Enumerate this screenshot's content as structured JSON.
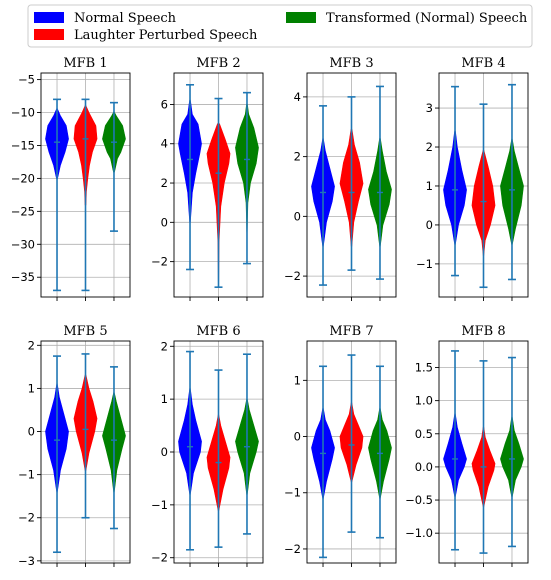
{
  "chart_data": {
    "type": "violin",
    "legend": {
      "placement": "top",
      "entries": [
        {
          "label": "Normal Speech",
          "color": "#0000ff"
        },
        {
          "label": "Laughter Perturbed Speech",
          "color": "#ff0000"
        },
        {
          "label": "Transformed (Normal) Speech",
          "color": "#008000"
        }
      ]
    },
    "grid": true,
    "colors": {
      "whisker": "#1f77b4",
      "grid": "#b0b0b0"
    },
    "panels": [
      {
        "title": "MFB 1",
        "ylim": [
          -38,
          -4
        ],
        "yticks": [
          -35,
          -30,
          -25,
          -20,
          -15,
          -10,
          -5
        ],
        "ytick_labels": [
          "−35",
          "−30",
          "−25",
          "−20",
          "−15",
          "−10",
          "−5"
        ],
        "series": [
          {
            "min": -37,
            "max": -8,
            "median": -14.5,
            "profile": [
              [
                -20,
                0.05
              ],
              [
                -18,
                0.3
              ],
              [
                -16,
                0.7
              ],
              [
                -14,
                1
              ],
              [
                -12,
                0.8
              ],
              [
                -10.5,
                0.3
              ],
              [
                -9.5,
                0.05
              ]
            ]
          },
          {
            "min": -37,
            "max": -8,
            "median": -14,
            "profile": [
              [
                -24,
                0.04
              ],
              [
                -22,
                0.08
              ],
              [
                -20,
                0.2
              ],
              [
                -18,
                0.35
              ],
              [
                -16,
                0.6
              ],
              [
                -14,
                1
              ],
              [
                -12,
                0.9
              ],
              [
                -10,
                0.3
              ],
              [
                -9,
                0.05
              ]
            ]
          },
          {
            "min": -28,
            "max": -8.5,
            "median": -14.5,
            "profile": [
              [
                -19,
                0.05
              ],
              [
                -17,
                0.3
              ],
              [
                -16,
                0.6
              ],
              [
                -14,
                1
              ],
              [
                -12,
                0.75
              ],
              [
                -10.5,
                0.2
              ],
              [
                -10,
                0.05
              ]
            ]
          }
        ]
      },
      {
        "title": "MFB 2",
        "ylim": [
          -3.8,
          7.6
        ],
        "yticks": [
          -2,
          0,
          2,
          4,
          6
        ],
        "ytick_labels": [
          "−2",
          "0",
          "2",
          "4",
          "6"
        ],
        "series": [
          {
            "min": -2.4,
            "max": 7,
            "median": 3.2,
            "profile": [
              [
                0,
                0.03
              ],
              [
                1.5,
                0.2
              ],
              [
                2.5,
                0.5
              ],
              [
                3.5,
                0.85
              ],
              [
                4,
                1
              ],
              [
                5,
                0.7
              ],
              [
                5.5,
                0.2
              ],
              [
                6.2,
                0.04
              ]
            ]
          },
          {
            "min": -3.3,
            "max": 6.3,
            "median": 2.5,
            "profile": [
              [
                -3,
                0.02
              ],
              [
                -1,
                0.05
              ],
              [
                0.8,
                0.2
              ],
              [
                2,
                0.5
              ],
              [
                3,
                0.9
              ],
              [
                3.5,
                1
              ],
              [
                4.2,
                0.6
              ],
              [
                5,
                0.1
              ]
            ]
          },
          {
            "min": -2.1,
            "max": 6.6,
            "median": 3.2,
            "profile": [
              [
                -0.5,
                0.02
              ],
              [
                1,
                0.08
              ],
              [
                2,
                0.3
              ],
              [
                3,
                0.8
              ],
              [
                3.8,
                1
              ],
              [
                4.8,
                0.6
              ],
              [
                5.5,
                0.15
              ],
              [
                6,
                0.04
              ]
            ]
          }
        ]
      },
      {
        "title": "MFB 3",
        "ylim": [
          -2.7,
          4.8
        ],
        "yticks": [
          -2,
          0,
          2,
          4
        ],
        "ytick_labels": [
          "−2",
          "0",
          "2",
          "4"
        ],
        "series": [
          {
            "min": -2.3,
            "max": 3.7,
            "median": 0.8,
            "profile": [
              [
                -1,
                0.03
              ],
              [
                -0.2,
                0.3
              ],
              [
                0.5,
                0.8
              ],
              [
                1,
                1
              ],
              [
                1.6,
                0.6
              ],
              [
                2.2,
                0.2
              ],
              [
                2.6,
                0.03
              ]
            ]
          },
          {
            "min": -1.8,
            "max": 4,
            "median": 0.8,
            "profile": [
              [
                -1,
                0.03
              ],
              [
                -0.2,
                0.2
              ],
              [
                0.5,
                0.6
              ],
              [
                1.1,
                1
              ],
              [
                1.8,
                0.7
              ],
              [
                2.4,
                0.25
              ],
              [
                2.9,
                0.05
              ]
            ]
          },
          {
            "min": -2.1,
            "max": 4.35,
            "median": 0.8,
            "profile": [
              [
                -1,
                0.03
              ],
              [
                -0.3,
                0.25
              ],
              [
                0.4,
                0.8
              ],
              [
                0.9,
                1
              ],
              [
                1.5,
                0.55
              ],
              [
                2.2,
                0.2
              ],
              [
                2.6,
                0.04
              ]
            ]
          }
        ]
      },
      {
        "title": "MFB 4",
        "ylim": [
          -1.85,
          3.9
        ],
        "yticks": [
          -1,
          0,
          1,
          2,
          3
        ],
        "ytick_labels": [
          "−1",
          "0",
          "1",
          "2",
          "3"
        ],
        "series": [
          {
            "min": -1.3,
            "max": 3.55,
            "median": 0.9,
            "profile": [
              [
                -0.5,
                0.03
              ],
              [
                0,
                0.3
              ],
              [
                0.5,
                0.8
              ],
              [
                0.9,
                1
              ],
              [
                1.4,
                0.6
              ],
              [
                2,
                0.2
              ],
              [
                2.4,
                0.04
              ]
            ]
          },
          {
            "min": -1.6,
            "max": 3.1,
            "median": 0.6,
            "profile": [
              [
                -0.8,
                0.02
              ],
              [
                -0.4,
                0.15
              ],
              [
                0,
                0.6
              ],
              [
                0.5,
                1
              ],
              [
                1,
                0.8
              ],
              [
                1.5,
                0.4
              ],
              [
                1.9,
                0.05
              ]
            ]
          },
          {
            "min": -1.4,
            "max": 3.6,
            "median": 0.9,
            "profile": [
              [
                -0.5,
                0.03
              ],
              [
                -0.1,
                0.3
              ],
              [
                0.5,
                0.8
              ],
              [
                1,
                1
              ],
              [
                1.5,
                0.55
              ],
              [
                1.9,
                0.2
              ],
              [
                2.2,
                0.03
              ]
            ]
          }
        ]
      },
      {
        "title": "MFB 5",
        "ylim": [
          -3.05,
          2.1
        ],
        "yticks": [
          -3,
          -2,
          -1,
          0,
          1,
          2
        ],
        "ytick_labels": [
          "−3",
          "−2",
          "−1",
          "0",
          "1",
          "2"
        ],
        "series": [
          {
            "min": -2.8,
            "max": 1.75,
            "median": -0.2,
            "profile": [
              [
                -1.4,
                0.03
              ],
              [
                -0.9,
                0.3
              ],
              [
                -0.4,
                0.8
              ],
              [
                0,
                1
              ],
              [
                0.4,
                0.6
              ],
              [
                0.8,
                0.2
              ],
              [
                1.1,
                0.03
              ]
            ]
          },
          {
            "min": -2,
            "max": 1.8,
            "median": 0.05,
            "profile": [
              [
                -0.9,
                0.04
              ],
              [
                -0.5,
                0.3
              ],
              [
                0,
                0.8
              ],
              [
                0.3,
                1
              ],
              [
                0.7,
                0.65
              ],
              [
                1,
                0.3
              ],
              [
                1.3,
                0.05
              ]
            ]
          },
          {
            "min": -2.25,
            "max": 1.5,
            "median": -0.2,
            "profile": [
              [
                -1.4,
                0.03
              ],
              [
                -0.9,
                0.25
              ],
              [
                -0.4,
                0.7
              ],
              [
                -0.1,
                1
              ],
              [
                0.3,
                0.6
              ],
              [
                0.7,
                0.2
              ],
              [
                0.9,
                0.03
              ]
            ]
          }
        ]
      },
      {
        "title": "MFB 6",
        "ylim": [
          -2.1,
          2.1
        ],
        "yticks": [
          -2,
          -1,
          0,
          1,
          2
        ],
        "ytick_labels": [
          "−2",
          "−1",
          "0",
          "1",
          "2"
        ],
        "series": [
          {
            "min": -1.85,
            "max": 1.9,
            "median": 0.1,
            "profile": [
              [
                -0.8,
                0.03
              ],
              [
                -0.4,
                0.3
              ],
              [
                0,
                0.9
              ],
              [
                0.2,
                1
              ],
              [
                0.6,
                0.5
              ],
              [
                0.9,
                0.2
              ],
              [
                1.2,
                0.03
              ]
            ]
          },
          {
            "min": -1.8,
            "max": 1.55,
            "median": -0.2,
            "profile": [
              [
                -1.1,
                0.04
              ],
              [
                -0.7,
                0.4
              ],
              [
                -0.3,
                0.9
              ],
              [
                -0.1,
                1
              ],
              [
                0.2,
                0.6
              ],
              [
                0.5,
                0.2
              ],
              [
                0.7,
                0.03
              ]
            ]
          },
          {
            "min": -1.55,
            "max": 1.85,
            "median": 0.1,
            "profile": [
              [
                -0.8,
                0.03
              ],
              [
                -0.4,
                0.25
              ],
              [
                0,
                0.8
              ],
              [
                0.2,
                1
              ],
              [
                0.5,
                0.6
              ],
              [
                0.8,
                0.2
              ],
              [
                1,
                0.03
              ]
            ]
          }
        ]
      },
      {
        "title": "MFB 7",
        "ylim": [
          -2.25,
          1.7
        ],
        "yticks": [
          -2,
          -1,
          0,
          1
        ],
        "ytick_labels": [
          "−2",
          "−1",
          "0",
          "1"
        ],
        "series": [
          {
            "min": -2.15,
            "max": 1.25,
            "median": -0.3,
            "profile": [
              [
                -1.1,
                0.03
              ],
              [
                -0.8,
                0.3
              ],
              [
                -0.4,
                0.8
              ],
              [
                -0.2,
                1
              ],
              [
                0.1,
                0.6
              ],
              [
                0.3,
                0.2
              ],
              [
                0.5,
                0.03
              ]
            ]
          },
          {
            "min": -1.7,
            "max": 1.45,
            "median": -0.15,
            "profile": [
              [
                -0.8,
                0.04
              ],
              [
                -0.5,
                0.4
              ],
              [
                -0.2,
                0.9
              ],
              [
                0,
                1
              ],
              [
                0.2,
                0.6
              ],
              [
                0.4,
                0.2
              ],
              [
                0.6,
                0.03
              ]
            ]
          },
          {
            "min": -1.8,
            "max": 1.25,
            "median": -0.3,
            "profile": [
              [
                -1.1,
                0.03
              ],
              [
                -0.8,
                0.3
              ],
              [
                -0.4,
                0.8
              ],
              [
                -0.2,
                1
              ],
              [
                0.1,
                0.6
              ],
              [
                0.3,
                0.2
              ],
              [
                0.5,
                0.03
              ]
            ]
          }
        ]
      },
      {
        "title": "MFB 8",
        "ylim": [
          -1.45,
          1.9
        ],
        "yticks": [
          -1,
          -0.5,
          0,
          0.5,
          1,
          1.5
        ],
        "ytick_labels": [
          "−1.0",
          "−0.5",
          "0.0",
          "0.5",
          "1.0",
          "1.5"
        ],
        "series": [
          {
            "min": -1.25,
            "max": 1.75,
            "median": 0.12,
            "profile": [
              [
                -0.45,
                0.03
              ],
              [
                -0.2,
                0.3
              ],
              [
                0,
                0.8
              ],
              [
                0.12,
                1
              ],
              [
                0.35,
                0.6
              ],
              [
                0.6,
                0.2
              ],
              [
                0.8,
                0.03
              ]
            ]
          },
          {
            "min": -1.3,
            "max": 1.6,
            "median": 0,
            "profile": [
              [
                -0.6,
                0.03
              ],
              [
                -0.3,
                0.4
              ],
              [
                -0.05,
                0.9
              ],
              [
                0.05,
                1
              ],
              [
                0.25,
                0.55
              ],
              [
                0.45,
                0.15
              ],
              [
                0.6,
                0.03
              ]
            ]
          },
          {
            "min": -1.2,
            "max": 1.65,
            "median": 0.12,
            "profile": [
              [
                -0.45,
                0.03
              ],
              [
                -0.2,
                0.3
              ],
              [
                0,
                0.8
              ],
              [
                0.12,
                1
              ],
              [
                0.35,
                0.6
              ],
              [
                0.55,
                0.2
              ],
              [
                0.75,
                0.03
              ]
            ]
          }
        ]
      }
    ]
  }
}
